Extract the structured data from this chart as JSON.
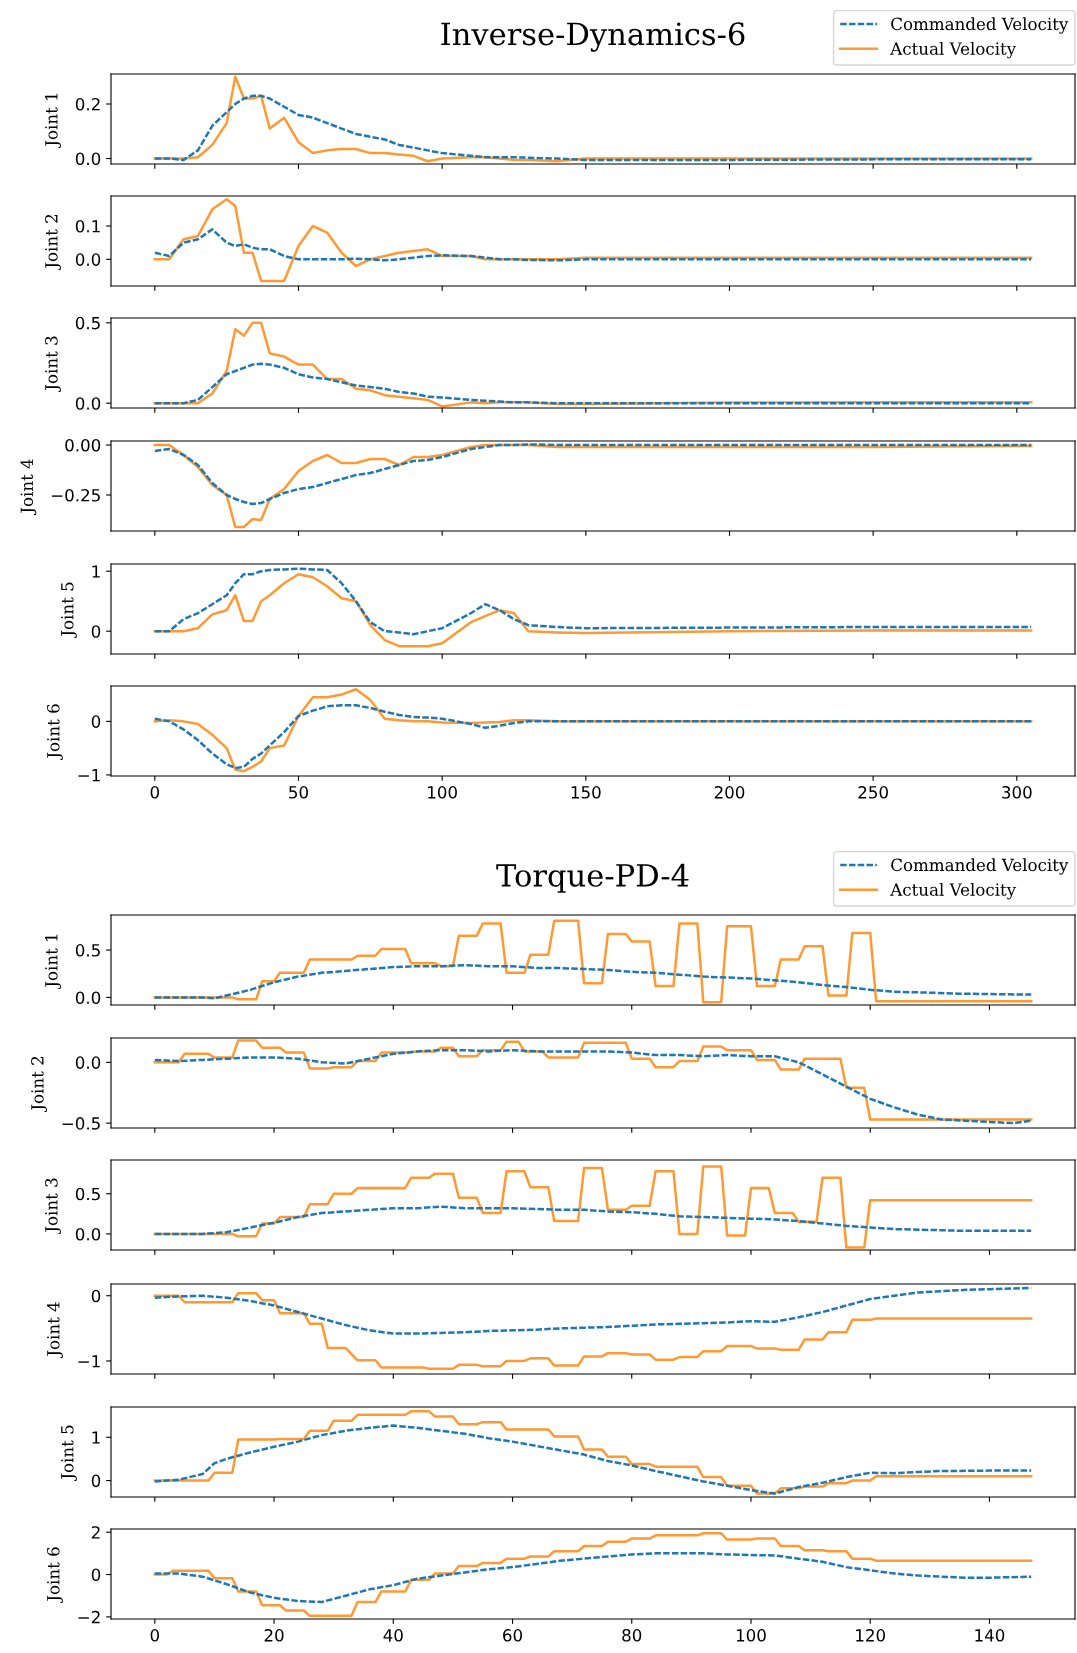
{
  "chart_data": [
    {
      "type": "line",
      "title": "Inverse-Dynamics-6",
      "ylabel": "Joint 1",
      "legend": "top right",
      "tick_labels": "y",
      "xlim": [
        -15.25,
        320.25
      ],
      "xticks": [
        0,
        50,
        100,
        150,
        200,
        250,
        300
      ],
      "ylim": [
        -0.02,
        0.31
      ],
      "yticks": [
        {
          "value": 0,
          "label": "0.0"
        },
        0.2
      ],
      "x": [
        0,
        5,
        10,
        15,
        20,
        25,
        28,
        31,
        34,
        37,
        40,
        45,
        50,
        55,
        60,
        65,
        70,
        75,
        80,
        85,
        90,
        95,
        100,
        110,
        115,
        120,
        125,
        130,
        140,
        150,
        200,
        250,
        305
      ],
      "series": [
        {
          "name": "Commanded Velocity",
          "color": "#1f77b4",
          "line_style": "dashed",
          "values": [
            0,
            0,
            -0.005,
            0.03,
            0.12,
            0.17,
            0.2,
            0.22,
            0.23,
            0.23,
            0.22,
            0.19,
            0.16,
            0.15,
            0.13,
            0.11,
            0.09,
            0.08,
            0.07,
            0.05,
            0.04,
            0.03,
            0.02,
            0.01,
            0.005,
            0.005,
            0.005,
            0.003,
            0,
            -0.005,
            -0.005,
            -0.003,
            -0.003
          ]
        },
        {
          "name": "Actual Velocity",
          "color": "#ff9933",
          "line_style": "solid",
          "values": [
            0,
            0,
            0,
            0.005,
            0.05,
            0.13,
            0.3,
            0.22,
            0.22,
            0.23,
            0.11,
            0.15,
            0.06,
            0.02,
            0.03,
            0.035,
            0.035,
            0.02,
            0.02,
            0.015,
            0.01,
            -0.01,
            0,
            0.005,
            0.005,
            0,
            -0.005,
            -0.005,
            -0.01,
            0,
            0,
            0,
            0
          ]
        }
      ]
    },
    {
      "type": "line",
      "ylabel": "Joint 2",
      "tick_labels": "y",
      "xlim": [
        -15.25,
        320.25
      ],
      "xticks": [
        0,
        50,
        100,
        150,
        200,
        250,
        300
      ],
      "ylim": [
        -0.08,
        0.19
      ],
      "yticks": [
        {
          "value": 0,
          "label": "0.0"
        },
        0.1
      ],
      "x": [
        0,
        5,
        10,
        15,
        20,
        25,
        28,
        31,
        34,
        37,
        40,
        45,
        50,
        55,
        60,
        65,
        70,
        75,
        80,
        85,
        90,
        95,
        100,
        110,
        115,
        120,
        125,
        130,
        140,
        150,
        200,
        250,
        305
      ],
      "series": [
        {
          "color": "#1f77b4",
          "line_style": "dashed",
          "values": [
            0.02,
            0.01,
            0.05,
            0.06,
            0.09,
            0.05,
            0.04,
            0.045,
            0.035,
            0.03,
            0.03,
            0.01,
            0,
            0,
            0,
            0,
            0.002,
            0,
            -0.003,
            0,
            0.005,
            0.01,
            0.012,
            0.01,
            0.005,
            0,
            0,
            -0.002,
            -0.003,
            0,
            0,
            0,
            0
          ]
        },
        {
          "color": "#ff9933",
          "line_style": "solid",
          "values": [
            0,
            0,
            0.06,
            0.07,
            0.15,
            0.18,
            0.16,
            0.02,
            0.02,
            -0.065,
            -0.065,
            -0.065,
            0.04,
            0.1,
            0.08,
            0.02,
            -0.02,
            0,
            0.01,
            0.02,
            0.025,
            0.03,
            0.01,
            0.01,
            0,
            0,
            0,
            0,
            0,
            0.005,
            0.005,
            0.005,
            0.005
          ]
        }
      ]
    },
    {
      "type": "line",
      "ylabel": "Joint 3",
      "tick_labels": "y",
      "xlim": [
        -15.25,
        320.25
      ],
      "xticks": [
        0,
        50,
        100,
        150,
        200,
        250,
        300
      ],
      "ylim": [
        -0.03,
        0.53
      ],
      "yticks": [
        {
          "value": 0,
          "label": "0.0"
        },
        0.5
      ],
      "x": [
        0,
        5,
        10,
        15,
        20,
        25,
        28,
        31,
        34,
        37,
        40,
        45,
        50,
        55,
        60,
        65,
        70,
        75,
        80,
        85,
        90,
        95,
        100,
        110,
        115,
        120,
        125,
        130,
        140,
        150,
        200,
        250,
        305
      ],
      "series": [
        {
          "color": "#1f77b4",
          "line_style": "dashed",
          "values": [
            0,
            0,
            0,
            0.02,
            0.1,
            0.18,
            0.2,
            0.22,
            0.24,
            0.245,
            0.24,
            0.22,
            0.18,
            0.16,
            0.15,
            0.13,
            0.11,
            0.1,
            0.09,
            0.07,
            0.06,
            0.04,
            0.035,
            0.02,
            0.015,
            0.01,
            0.005,
            0.005,
            0,
            0,
            0,
            0,
            0
          ]
        },
        {
          "color": "#ff9933",
          "line_style": "solid",
          "values": [
            0,
            0,
            0,
            0,
            0.06,
            0.2,
            0.46,
            0.42,
            0.5,
            0.5,
            0.31,
            0.29,
            0.24,
            0.24,
            0.15,
            0.15,
            0.09,
            0.08,
            0.05,
            0.04,
            0.03,
            0.02,
            -0.02,
            0.005,
            0,
            0.005,
            0.005,
            0.005,
            -0.005,
            -0.005,
            0.005,
            0.005,
            0.005
          ]
        }
      ]
    },
    {
      "type": "line",
      "ylabel": "Joint 4",
      "tick_labels": "y",
      "xlim": [
        -15.25,
        320.25
      ],
      "xticks": [
        0,
        50,
        100,
        150,
        200,
        250,
        300
      ],
      "ylim": [
        -0.43,
        0.02
      ],
      "yticks": [
        {
          "value": -0.25,
          "label": "−0.25"
        },
        {
          "value": 0,
          "label": "0.00"
        }
      ],
      "x": [
        0,
        5,
        10,
        15,
        20,
        25,
        28,
        31,
        34,
        37,
        40,
        45,
        50,
        55,
        60,
        65,
        70,
        75,
        80,
        85,
        90,
        95,
        100,
        110,
        115,
        120,
        125,
        130,
        140,
        150,
        200,
        250,
        305
      ],
      "series": [
        {
          "color": "#1f77b4",
          "line_style": "dashed",
          "values": [
            -0.03,
            -0.02,
            -0.05,
            -0.1,
            -0.19,
            -0.25,
            -0.27,
            -0.285,
            -0.295,
            -0.29,
            -0.27,
            -0.24,
            -0.22,
            -0.21,
            -0.19,
            -0.17,
            -0.15,
            -0.14,
            -0.12,
            -0.1,
            -0.08,
            -0.075,
            -0.06,
            -0.02,
            -0.01,
            0,
            0,
            0.003,
            0,
            0,
            0,
            0,
            0
          ]
        },
        {
          "color": "#ff9933",
          "line_style": "solid",
          "values": [
            0,
            0,
            -0.05,
            -0.11,
            -0.2,
            -0.25,
            -0.41,
            -0.41,
            -0.37,
            -0.375,
            -0.27,
            -0.22,
            -0.13,
            -0.08,
            -0.05,
            -0.09,
            -0.09,
            -0.07,
            -0.07,
            -0.1,
            -0.06,
            -0.06,
            -0.05,
            -0.01,
            0,
            0,
            0,
            0,
            -0.01,
            -0.01,
            -0.01,
            -0.01,
            -0.005
          ]
        }
      ]
    },
    {
      "type": "line",
      "ylabel": "Joint 5",
      "tick_labels": "y",
      "xlim": [
        -15.25,
        320.25
      ],
      "xticks": [
        0,
        50,
        100,
        150,
        200,
        250,
        300
      ],
      "ylim": [
        -0.38,
        1.12
      ],
      "yticks": [
        0,
        1
      ],
      "x": [
        0,
        5,
        10,
        15,
        20,
        25,
        28,
        31,
        34,
        37,
        40,
        45,
        50,
        55,
        60,
        65,
        70,
        75,
        80,
        85,
        90,
        95,
        100,
        110,
        115,
        120,
        125,
        130,
        140,
        150,
        200,
        250,
        305
      ],
      "series": [
        {
          "color": "#1f77b4",
          "line_style": "dashed",
          "values": [
            0,
            0,
            0.2,
            0.3,
            0.45,
            0.6,
            0.8,
            0.95,
            0.95,
            1.0,
            1.02,
            1.03,
            1.04,
            1.03,
            1.02,
            0.8,
            0.5,
            0.15,
            0,
            -0.02,
            -0.05,
            0,
            0.05,
            0.3,
            0.45,
            0.35,
            0.2,
            0.1,
            0.07,
            0.05,
            0.06,
            0.07,
            0.07
          ]
        },
        {
          "color": "#ff9933",
          "line_style": "solid",
          "values": [
            0,
            0,
            0,
            0.05,
            0.28,
            0.35,
            0.6,
            0.17,
            0.17,
            0.5,
            0.6,
            0.8,
            0.95,
            0.9,
            0.75,
            0.55,
            0.5,
            0.1,
            -0.15,
            -0.25,
            -0.25,
            -0.25,
            -0.2,
            0.15,
            0.25,
            0.35,
            0.3,
            0,
            -0.02,
            -0.03,
            0,
            0.01,
            0.01
          ]
        }
      ]
    },
    {
      "type": "line",
      "ylabel": "Joint 6",
      "xlim": [
        -15.25,
        320.25
      ],
      "xticks": [
        0,
        50,
        100,
        150,
        200,
        250,
        300
      ],
      "ylim": [
        -1.02,
        0.66
      ],
      "yticks": [
        {
          "value": -1,
          "label": "−1"
        },
        0
      ],
      "x": [
        0,
        5,
        10,
        15,
        20,
        25,
        28,
        31,
        34,
        37,
        40,
        45,
        50,
        55,
        60,
        65,
        70,
        75,
        80,
        85,
        90,
        95,
        100,
        110,
        115,
        120,
        125,
        130,
        140,
        150,
        200,
        250,
        305
      ],
      "series": [
        {
          "color": "#1f77b4",
          "line_style": "dashed",
          "values": [
            0.05,
            0,
            -0.15,
            -0.35,
            -0.6,
            -0.8,
            -0.87,
            -0.85,
            -0.7,
            -0.6,
            -0.45,
            -0.2,
            0.1,
            0.2,
            0.28,
            0.3,
            0.3,
            0.25,
            0.18,
            0.12,
            0.08,
            0.07,
            0.05,
            -0.05,
            -0.12,
            -0.08,
            -0.03,
            0,
            0,
            0,
            0,
            0,
            0
          ]
        },
        {
          "color": "#ff9933",
          "line_style": "solid",
          "values": [
            0,
            0.02,
            0,
            -0.05,
            -0.25,
            -0.5,
            -0.9,
            -0.93,
            -0.85,
            -0.75,
            -0.5,
            -0.45,
            0.1,
            0.45,
            0.45,
            0.5,
            0.6,
            0.4,
            0.05,
            0.02,
            0,
            0,
            -0.02,
            -0.03,
            -0.02,
            -0.01,
            0.02,
            0.02,
            0,
            0,
            0,
            0,
            0
          ]
        }
      ]
    },
    {
      "type": "line",
      "title": "Torque-PD-4",
      "ylabel": "Joint 1",
      "legend": "top right",
      "tick_labels": "y",
      "xlim": [
        -7.35,
        154.35
      ],
      "xticks": [
        0,
        20,
        40,
        60,
        80,
        100,
        120,
        140
      ],
      "ylim": [
        -0.08,
        0.87
      ],
      "yticks": [
        {
          "value": 0,
          "label": "0.0"
        },
        0.5
      ],
      "series": [
        {
          "name": "Commanded Velocity",
          "color": "#1f77b4",
          "line_style": "dashed",
          "x": [
            0,
            4,
            8,
            10,
            12,
            16,
            20,
            24,
            28,
            32,
            36,
            40,
            44,
            48,
            52,
            56,
            60,
            64,
            68,
            72,
            76,
            80,
            84,
            88,
            92,
            96,
            100,
            104,
            108,
            112,
            116,
            120,
            124,
            130,
            135,
            140,
            147
          ],
          "values": [
            0,
            0,
            0,
            -0.01,
            0.02,
            0.08,
            0.16,
            0.22,
            0.26,
            0.28,
            0.3,
            0.32,
            0.33,
            0.33,
            0.34,
            0.33,
            0.33,
            0.31,
            0.31,
            0.3,
            0.29,
            0.27,
            0.26,
            0.24,
            0.22,
            0.21,
            0.2,
            0.18,
            0.16,
            0.13,
            0.11,
            0.08,
            0.06,
            0.05,
            0.04,
            0.035,
            0.03
          ]
        },
        {
          "name": "Actual Velocity",
          "color": "#ff9933",
          "line_style": "solid",
          "x": [
            0,
            13,
            14,
            17,
            18,
            20,
            21,
            25,
            26,
            33,
            34,
            37,
            38,
            42,
            43,
            47,
            48,
            50,
            51,
            54,
            55,
            58,
            59,
            62,
            63,
            66,
            67,
            71,
            72,
            75,
            76,
            79,
            80,
            83,
            84,
            87,
            88,
            91,
            92,
            95,
            96,
            100,
            101,
            104,
            105,
            108,
            109,
            112,
            113,
            116,
            117,
            120,
            121,
            147
          ],
          "values": [
            0,
            0,
            -0.02,
            -0.02,
            0.17,
            0.17,
            0.26,
            0.26,
            0.4,
            0.4,
            0.44,
            0.44,
            0.51,
            0.51,
            0.36,
            0.36,
            0.33,
            0.33,
            0.65,
            0.65,
            0.78,
            0.78,
            0.26,
            0.26,
            0.45,
            0.45,
            0.81,
            0.81,
            0.15,
            0.15,
            0.67,
            0.67,
            0.59,
            0.59,
            0.12,
            0.12,
            0.78,
            0.78,
            -0.05,
            -0.05,
            0.75,
            0.75,
            0.12,
            0.12,
            0.4,
            0.4,
            0.54,
            0.54,
            0.02,
            0.02,
            0.68,
            0.68,
            -0.04,
            -0.04
          ]
        }
      ]
    },
    {
      "type": "line",
      "ylabel": "Joint 2",
      "tick_labels": "y",
      "xlim": [
        -7.35,
        154.35
      ],
      "xticks": [
        0,
        20,
        40,
        60,
        80,
        100,
        120,
        140
      ],
      "ylim": [
        -0.54,
        0.2
      ],
      "yticks": [
        {
          "value": -0.5,
          "label": "−0.5"
        },
        {
          "value": 0,
          "label": "0.0"
        }
      ],
      "series": [
        {
          "color": "#1f77b4",
          "line_style": "dashed",
          "x": [
            0,
            4,
            8,
            12,
            16,
            20,
            24,
            28,
            32,
            36,
            40,
            44,
            48,
            52,
            56,
            60,
            64,
            68,
            72,
            76,
            80,
            84,
            88,
            92,
            96,
            100,
            104,
            108,
            112,
            116,
            120,
            124,
            128,
            132,
            136,
            140,
            144,
            147
          ],
          "values": [
            0.02,
            0.01,
            0.02,
            0.03,
            0.04,
            0.04,
            0.03,
            0,
            -0.01,
            0.03,
            0.07,
            0.09,
            0.1,
            0.1,
            0.09,
            0.1,
            0.09,
            0.09,
            0.09,
            0.09,
            0.08,
            0.06,
            0.06,
            0.05,
            0.06,
            0.05,
            0.05,
            0,
            -0.1,
            -0.2,
            -0.3,
            -0.37,
            -0.43,
            -0.47,
            -0.48,
            -0.49,
            -0.5,
            -0.48
          ]
        },
        {
          "color": "#ff9933",
          "line_style": "solid",
          "x": [
            0,
            4,
            5,
            9,
            10,
            13,
            14,
            17,
            18,
            21,
            22,
            25,
            26,
            29,
            30,
            33,
            34,
            37,
            38,
            43,
            44,
            47,
            48,
            50,
            51,
            54,
            55,
            58,
            59,
            61,
            62,
            65,
            66,
            71,
            72,
            79,
            80,
            83,
            84,
            87,
            88,
            91,
            92,
            95,
            96,
            100,
            101,
            104,
            105,
            108,
            109,
            115,
            116,
            119,
            120,
            147
          ],
          "values": [
            0,
            0,
            0.07,
            0.07,
            0.04,
            0.04,
            0.18,
            0.18,
            0.12,
            0.12,
            0.08,
            0.08,
            -0.05,
            -0.05,
            -0.04,
            -0.04,
            0.01,
            0.01,
            0.08,
            0.08,
            0.09,
            0.09,
            0.12,
            0.12,
            0.05,
            0.05,
            0.1,
            0.1,
            0.17,
            0.17,
            0.09,
            0.09,
            0.04,
            0.04,
            0.16,
            0.16,
            0.03,
            0.03,
            -0.04,
            -0.04,
            0.01,
            0.01,
            0.13,
            0.13,
            0.1,
            0.1,
            0.02,
            0.02,
            -0.06,
            -0.06,
            0.03,
            0.03,
            -0.21,
            -0.21,
            -0.47,
            -0.47
          ]
        }
      ]
    },
    {
      "type": "line",
      "ylabel": "Joint 3",
      "tick_labels": "y",
      "xlim": [
        -7.35,
        154.35
      ],
      "xticks": [
        0,
        20,
        40,
        60,
        80,
        100,
        120,
        140
      ],
      "ylim": [
        -0.2,
        0.92
      ],
      "yticks": [
        {
          "value": 0,
          "label": "0.0"
        },
        0.5
      ],
      "series": [
        {
          "color": "#1f77b4",
          "line_style": "dashed",
          "x": [
            0,
            4,
            8,
            12,
            16,
            20,
            24,
            28,
            32,
            36,
            40,
            44,
            48,
            52,
            56,
            60,
            64,
            68,
            72,
            76,
            80,
            84,
            88,
            92,
            96,
            100,
            104,
            108,
            112,
            116,
            120,
            124,
            130,
            135,
            140,
            147
          ],
          "values": [
            0,
            0,
            0,
            0.02,
            0.08,
            0.14,
            0.21,
            0.26,
            0.28,
            0.3,
            0.32,
            0.32,
            0.34,
            0.32,
            0.32,
            0.32,
            0.31,
            0.3,
            0.3,
            0.28,
            0.27,
            0.25,
            0.22,
            0.21,
            0.2,
            0.19,
            0.18,
            0.16,
            0.13,
            0.1,
            0.08,
            0.06,
            0.05,
            0.04,
            0.04,
            0.04
          ]
        },
        {
          "color": "#ff9933",
          "line_style": "solid",
          "x": [
            0,
            13,
            14,
            17,
            18,
            20,
            21,
            25,
            26,
            29,
            30,
            33,
            34,
            42,
            43,
            46,
            47,
            50,
            51,
            54,
            55,
            58,
            59,
            62,
            63,
            66,
            67,
            71,
            72,
            75,
            76,
            79,
            80,
            83,
            84,
            87,
            88,
            91,
            92,
            95,
            96,
            99,
            100,
            103,
            104,
            107,
            108,
            111,
            112,
            115,
            116,
            119,
            120,
            147
          ],
          "values": [
            0,
            0,
            -0.03,
            -0.03,
            0.13,
            0.13,
            0.21,
            0.21,
            0.37,
            0.37,
            0.5,
            0.5,
            0.57,
            0.57,
            0.7,
            0.7,
            0.75,
            0.75,
            0.45,
            0.45,
            0.26,
            0.26,
            0.78,
            0.78,
            0.58,
            0.58,
            0.16,
            0.16,
            0.82,
            0.82,
            0.3,
            0.3,
            0.35,
            0.35,
            0.78,
            0.78,
            0,
            0,
            0.84,
            0.84,
            -0.02,
            -0.02,
            0.57,
            0.57,
            0.26,
            0.26,
            0.15,
            0.15,
            0.7,
            0.7,
            -0.17,
            -0.17,
            0.42,
            0.42
          ]
        }
      ]
    },
    {
      "type": "line",
      "ylabel": "Joint 4",
      "tick_labels": "y",
      "xlim": [
        -7.35,
        154.35
      ],
      "xticks": [
        0,
        20,
        40,
        60,
        80,
        100,
        120,
        140
      ],
      "ylim": [
        -1.2,
        0.18
      ],
      "yticks": [
        {
          "value": -1,
          "label": "−1"
        },
        0
      ],
      "series": [
        {
          "color": "#1f77b4",
          "line_style": "dashed",
          "x": [
            0,
            4,
            8,
            12,
            16,
            20,
            24,
            28,
            32,
            36,
            40,
            44,
            48,
            52,
            56,
            60,
            64,
            68,
            72,
            76,
            80,
            84,
            88,
            92,
            96,
            100,
            104,
            108,
            112,
            116,
            120,
            124,
            128,
            132,
            136,
            140,
            147
          ],
          "values": [
            -0.03,
            -0.01,
            0,
            -0.03,
            -0.08,
            -0.15,
            -0.25,
            -0.35,
            -0.45,
            -0.53,
            -0.58,
            -0.58,
            -0.57,
            -0.56,
            -0.54,
            -0.53,
            -0.52,
            -0.5,
            -0.49,
            -0.48,
            -0.46,
            -0.44,
            -0.43,
            -0.42,
            -0.41,
            -0.39,
            -0.4,
            -0.33,
            -0.25,
            -0.15,
            -0.05,
            0,
            0.05,
            0.07,
            0.09,
            0.1,
            0.12
          ]
        },
        {
          "color": "#ff9933",
          "line_style": "solid",
          "x": [
            0,
            4,
            5,
            13,
            14,
            17,
            18,
            20,
            21,
            25,
            26,
            28,
            29,
            32,
            34,
            37,
            38,
            45,
            46,
            50,
            51,
            54,
            55,
            58,
            59,
            62,
            63,
            66,
            67,
            71,
            72,
            75,
            76,
            79,
            80,
            83,
            84,
            87,
            88,
            91,
            92,
            95,
            96,
            100,
            101,
            104,
            105,
            108,
            109,
            112,
            113,
            116,
            117,
            120,
            121,
            147
          ],
          "values": [
            0,
            0,
            -0.1,
            -0.1,
            0.04,
            0.04,
            -0.07,
            -0.07,
            -0.27,
            -0.27,
            -0.43,
            -0.43,
            -0.8,
            -0.8,
            -0.99,
            -0.99,
            -1.1,
            -1.1,
            -1.12,
            -1.12,
            -1.06,
            -1.06,
            -1.08,
            -1.08,
            -1.0,
            -1.0,
            -0.96,
            -0.96,
            -1.07,
            -1.07,
            -0.93,
            -0.93,
            -0.88,
            -0.88,
            -0.9,
            -0.9,
            -0.98,
            -0.98,
            -0.94,
            -0.94,
            -0.85,
            -0.85,
            -0.77,
            -0.77,
            -0.81,
            -0.81,
            -0.83,
            -0.83,
            -0.67,
            -0.67,
            -0.56,
            -0.56,
            -0.37,
            -0.37,
            -0.35,
            -0.35
          ]
        }
      ]
    },
    {
      "type": "line",
      "ylabel": "Joint 5",
      "tick_labels": "y",
      "xlim": [
        -7.35,
        154.35
      ],
      "xticks": [
        0,
        20,
        40,
        60,
        80,
        100,
        120,
        140
      ],
      "ylim": [
        -0.38,
        1.7
      ],
      "yticks": [
        0,
        1
      ],
      "series": [
        {
          "color": "#1f77b4",
          "line_style": "dashed",
          "x": [
            0,
            4,
            8,
            10,
            12,
            16,
            20,
            24,
            28,
            32,
            36,
            40,
            44,
            48,
            52,
            56,
            60,
            64,
            68,
            72,
            76,
            80,
            84,
            88,
            92,
            96,
            100,
            104,
            108,
            112,
            116,
            120,
            124,
            128,
            132,
            140,
            147
          ],
          "values": [
            -0.02,
            0.02,
            0.15,
            0.4,
            0.5,
            0.65,
            0.78,
            0.9,
            1.05,
            1.15,
            1.22,
            1.27,
            1.22,
            1.15,
            1.08,
            0.98,
            0.9,
            0.8,
            0.7,
            0.6,
            0.45,
            0.35,
            0.22,
            0.1,
            -0.02,
            -0.12,
            -0.22,
            -0.3,
            -0.15,
            -0.05,
            0.08,
            0.18,
            0.17,
            0.2,
            0.22,
            0.23,
            0.23
          ]
        },
        {
          "color": "#ff9933",
          "line_style": "solid",
          "x": [
            0,
            9,
            10,
            13,
            14,
            20,
            21,
            25,
            26,
            29,
            30,
            33,
            34,
            42,
            43,
            46,
            47,
            50,
            51,
            54,
            55,
            58,
            59,
            66,
            67,
            71,
            72,
            75,
            76,
            79,
            80,
            83,
            84,
            91,
            92,
            95,
            96,
            100,
            101,
            104,
            105,
            108,
            109,
            112,
            113,
            116,
            117,
            120,
            121,
            147
          ],
          "values": [
            0,
            0,
            0.18,
            0.18,
            0.95,
            0.95,
            0.96,
            0.96,
            1.15,
            1.15,
            1.38,
            1.38,
            1.52,
            1.52,
            1.6,
            1.6,
            1.48,
            1.48,
            1.3,
            1.3,
            1.35,
            1.35,
            1.18,
            1.18,
            1.02,
            1.02,
            0.72,
            0.72,
            0.55,
            0.55,
            0.38,
            0.38,
            0.32,
            0.32,
            0.08,
            0.08,
            -0.12,
            -0.12,
            -0.3,
            -0.3,
            -0.18,
            -0.18,
            -0.14,
            -0.14,
            -0.06,
            -0.06,
            0,
            0,
            0.1,
            0.1
          ]
        }
      ]
    },
    {
      "type": "line",
      "ylabel": "Joint 6",
      "xlim": [
        -7.35,
        154.35
      ],
      "xticks": [
        0,
        20,
        40,
        60,
        80,
        100,
        120,
        140
      ],
      "ylim": [
        -2.1,
        2.15
      ],
      "yticks": [
        {
          "value": -2,
          "label": "−2"
        },
        0,
        2
      ],
      "series": [
        {
          "color": "#1f77b4",
          "line_style": "dashed",
          "x": [
            0,
            4,
            8,
            12,
            16,
            20,
            24,
            28,
            32,
            36,
            40,
            44,
            48,
            52,
            56,
            60,
            64,
            68,
            72,
            76,
            80,
            84,
            88,
            92,
            96,
            100,
            104,
            108,
            112,
            116,
            120,
            124,
            128,
            132,
            136,
            140,
            147
          ],
          "values": [
            0.05,
            0.05,
            -0.1,
            -0.45,
            -0.85,
            -1.1,
            -1.25,
            -1.3,
            -1.0,
            -0.7,
            -0.5,
            -0.2,
            -0.05,
            0.1,
            0.25,
            0.35,
            0.5,
            0.65,
            0.75,
            0.85,
            0.95,
            1.0,
            1.0,
            1.0,
            0.95,
            0.92,
            0.9,
            0.75,
            0.6,
            0.35,
            0.2,
            0.05,
            -0.05,
            -0.1,
            -0.15,
            -0.15,
            -0.1
          ]
        },
        {
          "color": "#ff9933",
          "line_style": "solid",
          "x": [
            0,
            2,
            3,
            9,
            10,
            13,
            14,
            17,
            18,
            21,
            22,
            25,
            26,
            33,
            34,
            37,
            38,
            42,
            43,
            46,
            47,
            50,
            51,
            54,
            55,
            58,
            59,
            62,
            63,
            66,
            67,
            71,
            72,
            75,
            76,
            79,
            80,
            83,
            84,
            91,
            92,
            95,
            96,
            100,
            101,
            104,
            105,
            108,
            109,
            112,
            113,
            116,
            117,
            120,
            121,
            147
          ],
          "values": [
            0,
            0,
            0.18,
            0.18,
            -0.18,
            -0.18,
            -0.8,
            -0.8,
            -1.45,
            -1.45,
            -1.7,
            -1.7,
            -1.95,
            -1.95,
            -1.3,
            -1.3,
            -0.8,
            -0.8,
            -0.25,
            -0.25,
            0.05,
            0.05,
            0.4,
            0.4,
            0.55,
            0.55,
            0.75,
            0.75,
            0.85,
            0.85,
            1.1,
            1.1,
            1.35,
            1.35,
            1.55,
            1.55,
            1.7,
            1.7,
            1.85,
            1.85,
            1.95,
            1.95,
            1.65,
            1.65,
            1.7,
            1.7,
            1.35,
            1.35,
            1.15,
            1.15,
            1.1,
            1.1,
            0.75,
            0.75,
            0.65,
            0.65
          ]
        }
      ]
    }
  ]
}
